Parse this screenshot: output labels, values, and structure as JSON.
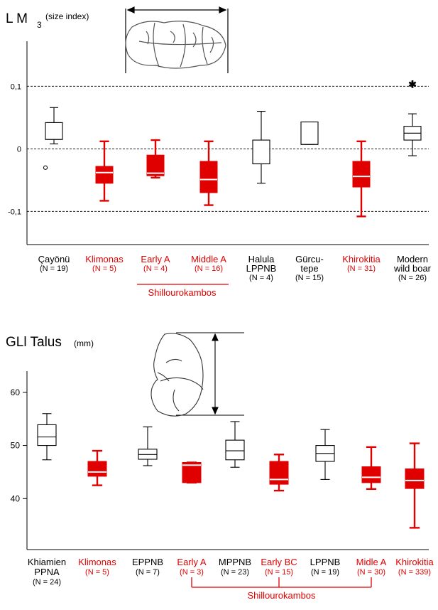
{
  "chart_data": [
    {
      "type": "boxplot",
      "title_main": "L M",
      "title_sub": "3",
      "title_unit": "(size index)",
      "yticks": [
        {
          "value": 0.1,
          "label": "0,1"
        },
        {
          "value": 0,
          "label": "0"
        },
        {
          "value": -0.1,
          "label": "-0,1"
        }
      ],
      "ylim": [
        -0.153,
        0.172
      ],
      "grid": "dashed at tick values",
      "colors": {
        "modern": "#000000",
        "archaeological": "#e00000"
      },
      "categories": [
        {
          "lines": [
            "Çayönü"
          ],
          "n": "(N = 19)",
          "color": "#000000",
          "filled": false,
          "whisker_low": 0.008,
          "q1": 0.015,
          "median": 0.015,
          "q3": 0.042,
          "whisker_high": 0.066,
          "outliers": [
            -0.03
          ]
        },
        {
          "lines": [
            "Klimonas"
          ],
          "n": "(N = 5)",
          "color": "#e00000",
          "filled": true,
          "whisker_low": -0.083,
          "q1": -0.055,
          "median": -0.038,
          "q3": -0.028,
          "whisker_high": 0.012,
          "outliers": []
        },
        {
          "lines": [
            "Early A"
          ],
          "n": "(N = 4)",
          "color": "#e00000",
          "filled": true,
          "whisker_low": -0.046,
          "q1": -0.043,
          "median": -0.039,
          "q3": -0.01,
          "whisker_high": 0.014,
          "outliers": []
        },
        {
          "lines": [
            "Middle A"
          ],
          "n": "(N = 16)",
          "color": "#e00000",
          "filled": true,
          "whisker_low": -0.09,
          "q1": -0.07,
          "median": -0.049,
          "q3": -0.02,
          "whisker_high": 0.012,
          "outliers": []
        },
        {
          "lines": [
            "Halula",
            "LPPNB"
          ],
          "n": "(N = 4)",
          "color": "#000000",
          "filled": false,
          "whisker_low": -0.055,
          "q1": -0.024,
          "median": -0.024,
          "q3": 0.014,
          "whisker_high": 0.06,
          "outliers": []
        },
        {
          "lines": [
            "Gürcu-",
            "tepe"
          ],
          "n": "(N = 15)",
          "color": "#000000",
          "filled": false,
          "whisker_low": 0.007,
          "q1": 0.007,
          "median": 0.007,
          "q3": 0.043,
          "whisker_high": 0.043,
          "outliers": []
        },
        {
          "lines": [
            "Khirokitia"
          ],
          "n": "(N = 31)",
          "color": "#e00000",
          "filled": true,
          "whisker_low": -0.108,
          "q1": -0.061,
          "median": -0.044,
          "q3": -0.02,
          "whisker_high": 0.012,
          "outliers": []
        },
        {
          "lines": [
            "Modern",
            "wild boar"
          ],
          "n": "(N = 26)",
          "color": "#000000",
          "filled": false,
          "whisker_low": -0.011,
          "q1": 0.014,
          "median": 0.025,
          "q3": 0.036,
          "whisker_high": 0.056,
          "outliers": [],
          "extremes": [
            0.103
          ]
        }
      ],
      "group_bracket": {
        "label": "Shillourokambos",
        "from": 2,
        "to": 3,
        "color": "#e00000"
      }
    },
    {
      "type": "boxplot",
      "title_main": "GLl Talus",
      "title_unit": "(mm)",
      "yticks": [
        {
          "value": 60,
          "label": "60"
        },
        {
          "value": 50,
          "label": "50"
        },
        {
          "value": 40,
          "label": "40"
        }
      ],
      "ylim": [
        30.4,
        64.0
      ],
      "grid": "none",
      "colors": {
        "modern": "#000000",
        "archaeological": "#e00000"
      },
      "categories": [
        {
          "lines": [
            "Khiamien",
            "PPNA"
          ],
          "n": "(N = 24)",
          "color": "#000000",
          "filled": false,
          "whisker_low": 47.3,
          "q1": 50.0,
          "median": 51.6,
          "q3": 53.9,
          "whisker_high": 56.0,
          "outliers": []
        },
        {
          "lines": [
            "Klimonas"
          ],
          "n": "(N = 5)",
          "color": "#e00000",
          "filled": true,
          "whisker_low": 42.5,
          "q1": 44.2,
          "median": 45.0,
          "q3": 47.0,
          "whisker_high": 49.0,
          "outliers": []
        },
        {
          "lines": [
            "EPPNB"
          ],
          "n": "(N = 7)",
          "color": "#000000",
          "filled": false,
          "whisker_low": 46.2,
          "q1": 47.4,
          "median": 48.3,
          "q3": 49.3,
          "whisker_high": 53.5,
          "outliers": []
        },
        {
          "lines": [
            "Early A"
          ],
          "n": "(N = 3)",
          "color": "#e00000",
          "filled": true,
          "whisker_low": 43.0,
          "q1": 43.0,
          "median": 46.3,
          "q3": 46.8,
          "whisker_high": 46.8,
          "outliers": []
        },
        {
          "lines": [
            "MPPNB"
          ],
          "n": "(N = 23)",
          "color": "#000000",
          "filled": false,
          "whisker_low": 45.9,
          "q1": 47.3,
          "median": 49.0,
          "q3": 51.0,
          "whisker_high": 54.5,
          "outliers": []
        },
        {
          "lines": [
            "Early BC"
          ],
          "n": "(N = 15)",
          "color": "#e00000",
          "filled": true,
          "whisker_low": 41.5,
          "q1": 42.7,
          "median": 43.6,
          "q3": 47.0,
          "whisker_high": 48.3,
          "outliers": []
        },
        {
          "lines": [
            "LPPNB"
          ],
          "n": "(N = 19)",
          "color": "#000000",
          "filled": false,
          "whisker_low": 43.6,
          "q1": 47.0,
          "median": 48.5,
          "q3": 50.0,
          "whisker_high": 53.0,
          "outliers": []
        },
        {
          "lines": [
            "Midle A"
          ],
          "n": "(N = 30)",
          "color": "#e00000",
          "filled": true,
          "whisker_low": 41.8,
          "q1": 43.0,
          "median": 44.0,
          "q3": 46.0,
          "whisker_high": 49.7,
          "outliers": []
        },
        {
          "lines": [
            "Khirokitia"
          ],
          "n": "(N = 339)",
          "color": "#e00000",
          "filled": true,
          "whisker_low": 34.5,
          "q1": 41.9,
          "median": 43.4,
          "q3": 45.6,
          "whisker_high": 50.4,
          "outliers": []
        }
      ],
      "group_bracket": {
        "label": "Shillourokambos",
        "from": 3,
        "to": 7,
        "color": "#e00000",
        "ticks": [
          3,
          5,
          7
        ]
      }
    }
  ]
}
